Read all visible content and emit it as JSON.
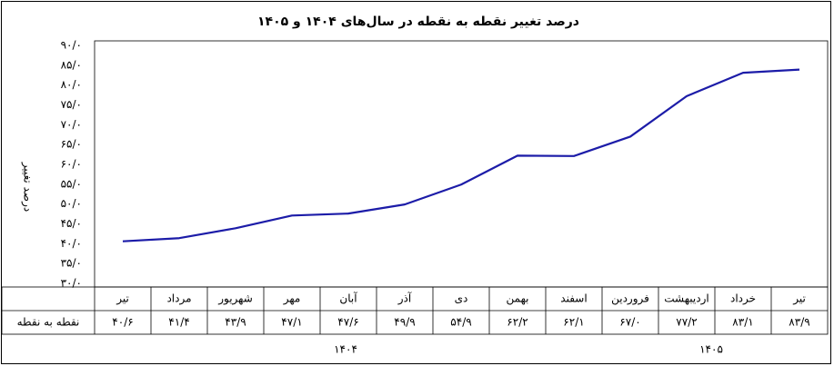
{
  "chart_data": {
    "type": "line",
    "title": "درصد تغییر نقطه به نقطه در سال‌های ۱۴۰۴ و ۱۴۰۵",
    "y_label": "درصد تغییر",
    "categories": [
      "تیر",
      "مرداد",
      "شهریور",
      "مهر",
      "آبان",
      "آذر",
      "دی",
      "بهمن",
      "اسفند",
      "فروردین",
      "اردیبهشت",
      "خرداد",
      "تیر"
    ],
    "series": [
      {
        "name": "نقطه به نقطه",
        "color": "#1c1ca8",
        "values": [
          40.6,
          41.4,
          43.9,
          47.1,
          47.6,
          49.9,
          54.9,
          62.2,
          62.1,
          67.0,
          77.2,
          83.1,
          83.9
        ],
        "value_labels": [
          "۴۰/۶",
          "۴۱/۴",
          "۴۳/۹",
          "۴۷/۱",
          "۴۷/۶",
          "۴۹/۹",
          "۵۴/۹",
          "۶۲/۲",
          "۶۲/۱",
          "۶۷/۰",
          "۷۷/۲",
          "۸۳/۱",
          "۸۳/۹"
        ]
      }
    ],
    "ylim": [
      30,
      90
    ],
    "yticks": [
      {
        "value": 30,
        "label": "۳۰/۰"
      },
      {
        "value": 35,
        "label": "۳۵/۰"
      },
      {
        "value": 40,
        "label": "۴۰/۰"
      },
      {
        "value": 45,
        "label": "۴۵/۰"
      },
      {
        "value": 50,
        "label": "۵۰/۰"
      },
      {
        "value": 55,
        "label": "۵۵/۰"
      },
      {
        "value": 60,
        "label": "۶۰/۰"
      },
      {
        "value": 65,
        "label": "۶۵/۰"
      },
      {
        "value": 70,
        "label": "۷۰/۰"
      },
      {
        "value": 75,
        "label": "۷۵/۰"
      },
      {
        "value": 80,
        "label": "۸۰/۰"
      },
      {
        "value": 85,
        "label": "۸۵/۰"
      },
      {
        "value": 90,
        "label": "۹۰/۰"
      }
    ],
    "annotations": [
      "۱۴۰۴",
      "۱۴۰۵"
    ],
    "grid": false
  }
}
